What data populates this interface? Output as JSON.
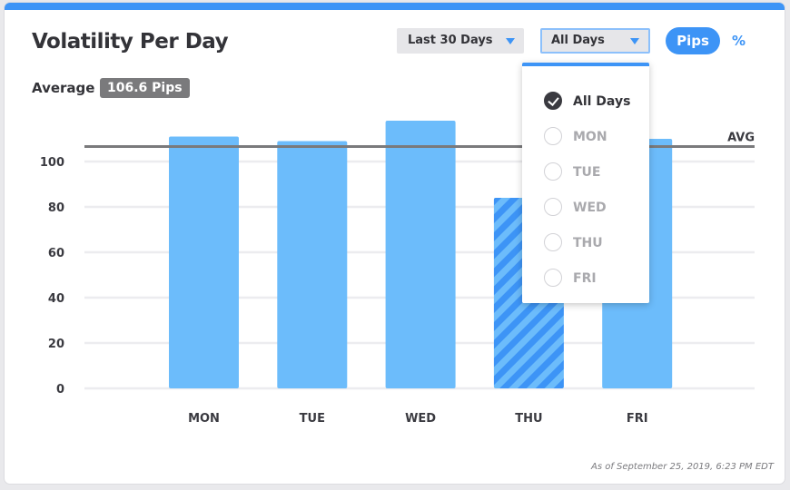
{
  "header": {
    "title": "Volatility Per Day",
    "average_label": "Average",
    "average_value": "106.6 Pips"
  },
  "controls": {
    "period_select": "Last 30 Days",
    "day_select": "All Days",
    "unit_pips": "Pips",
    "unit_percent": "%"
  },
  "colors": {
    "accent": "#3d94f6",
    "bar": "#6cbcfb",
    "bar_highlight": "#3d94f6",
    "avg_line": "#7a7a7c"
  },
  "dropdown_menu": {
    "items": [
      {
        "label": "All Days",
        "checked": true
      },
      {
        "label": "MON",
        "checked": false
      },
      {
        "label": "TUE",
        "checked": false
      },
      {
        "label": "WED",
        "checked": false
      },
      {
        "label": "THU",
        "checked": false
      },
      {
        "label": "FRI",
        "checked": false
      }
    ]
  },
  "chart_data": {
    "type": "bar",
    "categories": [
      "MON",
      "TUE",
      "WED",
      "THU",
      "FRI"
    ],
    "values": [
      111,
      109,
      118,
      84,
      110
    ],
    "highlighted": "THU",
    "average": 106.6,
    "average_label": "AVG",
    "yticks": [
      0,
      20,
      40,
      60,
      80,
      100
    ],
    "ylim": [
      0,
      126
    ],
    "grid": true
  },
  "footer": {
    "timestamp": "As of September 25, 2019, 6:23 PM EDT"
  }
}
